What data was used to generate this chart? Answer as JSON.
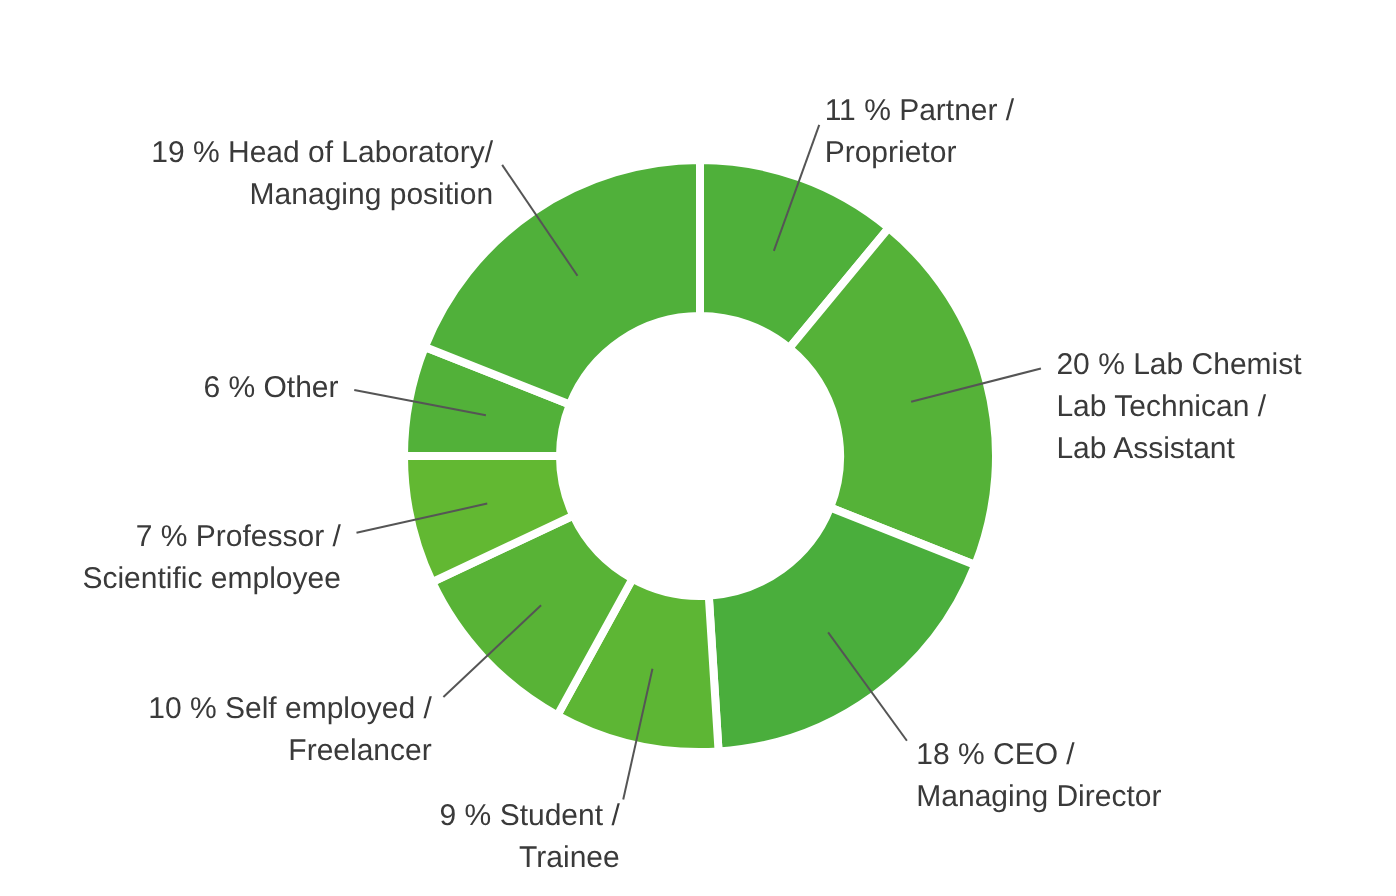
{
  "chart_data": {
    "type": "donut",
    "categories": [
      "11 % Partner /\nProprietor",
      "20 % Lab Chemist\nLab Technican /\nLab Assistant",
      "18 % CEO /\nManaging Director",
      "9 % Student /\nTrainee",
      "10 % Self employed /\nFreelancer",
      "7 % Professor /\nScientific employee",
      "6 % Other",
      "19 % Head of Laboratory/\nManaging position"
    ],
    "values": [
      11,
      20,
      18,
      9,
      10,
      7,
      6,
      19
    ],
    "colors": [
      "#4fb03a",
      "#55b238",
      "#4aae3c",
      "#5db634",
      "#58b336",
      "#62b832",
      "#52b139",
      "#50b03a"
    ]
  }
}
